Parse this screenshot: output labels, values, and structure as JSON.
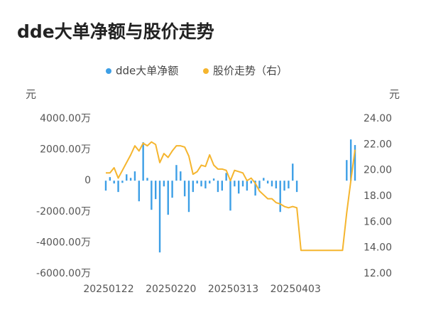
{
  "chart_data": {
    "type": "bar-line",
    "title": "dde大单净额与股价走势",
    "y_unit": "元",
    "y2_unit": "元",
    "categories": [
      "20250122",
      null,
      null,
      null,
      null,
      null,
      null,
      null,
      null,
      null,
      null,
      null,
      null,
      null,
      null,
      "20250220",
      null,
      null,
      null,
      null,
      null,
      null,
      null,
      null,
      null,
      null,
      null,
      null,
      null,
      null,
      "20250313",
      null,
      null,
      null,
      null,
      null,
      null,
      null,
      null,
      null,
      null,
      null,
      null,
      null,
      null,
      "20250403",
      null,
      null,
      null,
      null,
      null,
      null,
      null,
      null,
      null,
      null,
      null,
      null,
      null,
      null,
      null
    ],
    "ylim": [
      -6000,
      4000
    ],
    "yticks": [
      {
        "value": -6000,
        "label": "-6000.00万"
      },
      {
        "value": -4000,
        "label": "-4000.00万"
      },
      {
        "value": -2000,
        "label": "-2000.00万"
      },
      {
        "value": 0,
        "label": "0"
      },
      {
        "value": 2000,
        "label": "2000.00万"
      },
      {
        "value": 4000,
        "label": "4000.00万"
      }
    ],
    "y2lim": [
      12,
      24
    ],
    "y2ticks": [
      {
        "value": 12,
        "label": "12.00"
      },
      {
        "value": 14,
        "label": "14.00"
      },
      {
        "value": 16,
        "label": "16.00"
      },
      {
        "value": 18,
        "label": "18.00"
      },
      {
        "value": 20,
        "label": "20.00"
      },
      {
        "value": 22,
        "label": "22.00"
      },
      {
        "value": 24,
        "label": "24.00"
      }
    ],
    "series": [
      {
        "name": "dde大单净额",
        "type": "bar",
        "color": "#3d9fe6",
        "values": [
          -640,
          230,
          -180,
          -730,
          -140,
          410,
          180,
          600,
          -1330,
          2480,
          180,
          -1880,
          -1190,
          -4630,
          -370,
          -2200,
          -1100,
          1010,
          600,
          -1010,
          -2020,
          -730,
          -180,
          -370,
          -500,
          -180,
          140,
          -730,
          -640,
          500,
          -1930,
          -370,
          -830,
          -370,
          -640,
          -180,
          -960,
          -500,
          180,
          -180,
          -370,
          -500,
          -2020,
          -640,
          -500,
          1100,
          -730,
          null,
          null,
          null,
          null,
          null,
          null,
          null,
          null,
          null,
          null,
          null,
          1330,
          2660,
          2300
        ]
      },
      {
        "name": "股价走势（右）",
        "type": "line",
        "axis": "y2",
        "color": "#f5b52e",
        "values": [
          19.8,
          19.8,
          20.2,
          19.4,
          20.0,
          20.6,
          21.2,
          21.9,
          21.5,
          22.1,
          21.9,
          22.2,
          22.0,
          20.6,
          21.3,
          21.0,
          21.5,
          21.9,
          21.9,
          21.8,
          21.1,
          19.7,
          19.9,
          20.4,
          20.3,
          21.2,
          20.4,
          20.1,
          20.1,
          20.0,
          19.2,
          20.0,
          19.9,
          19.8,
          19.2,
          19.4,
          19.0,
          18.4,
          18.1,
          17.8,
          17.8,
          17.5,
          17.4,
          17.2,
          17.1,
          17.2,
          17.1,
          13.8,
          13.8,
          13.8,
          13.8,
          13.8,
          13.8,
          13.8,
          13.8,
          13.8,
          13.8,
          13.8,
          16.7,
          19.2,
          21.6
        ]
      }
    ]
  }
}
